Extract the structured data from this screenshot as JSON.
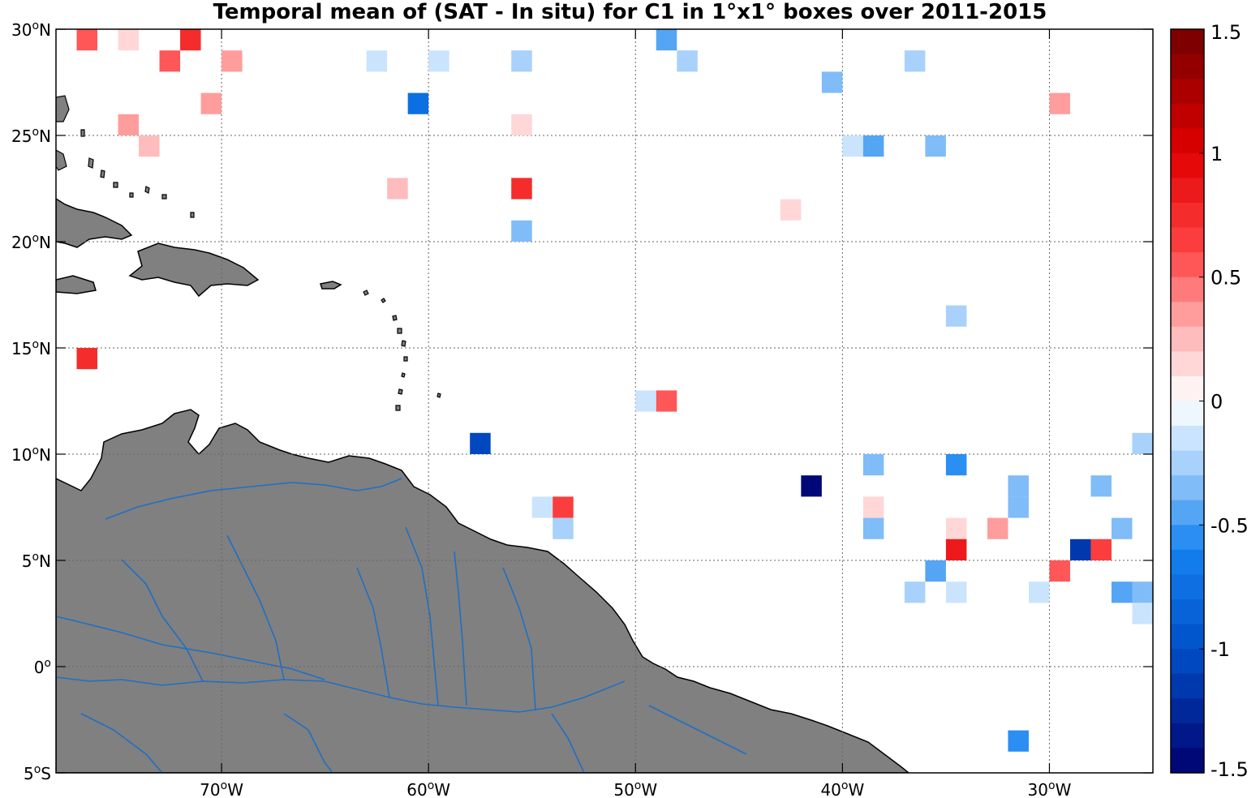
{
  "title": "Temporal mean of (SAT - In situ) for C1 in 1°x1° boxes over 2011-2015",
  "colors": {
    "land": "#808080",
    "coast": "#000000",
    "river": "#1f6fc4",
    "grid": "#666666"
  },
  "map": {
    "lon_range": [
      -78,
      -25
    ],
    "lat_range": [
      -5,
      30
    ],
    "x_ticks": [
      {
        "value": -70,
        "num": "70",
        "sup": "o",
        "dir": "W"
      },
      {
        "value": -60,
        "num": "60",
        "sup": "o",
        "dir": "W"
      },
      {
        "value": -50,
        "num": "50",
        "sup": "o",
        "dir": "W"
      },
      {
        "value": -40,
        "num": "40",
        "sup": "o",
        "dir": "W"
      },
      {
        "value": -30,
        "num": "30",
        "sup": "o",
        "dir": "W"
      }
    ],
    "y_ticks": [
      {
        "value": 30,
        "num": "30",
        "sup": "o",
        "dir": "N"
      },
      {
        "value": 25,
        "num": "25",
        "sup": "o",
        "dir": "N"
      },
      {
        "value": 20,
        "num": "20",
        "sup": "o",
        "dir": "N"
      },
      {
        "value": 15,
        "num": "15",
        "sup": "o",
        "dir": "N"
      },
      {
        "value": 10,
        "num": "10",
        "sup": "o",
        "dir": "N"
      },
      {
        "value": 5,
        "num": "5",
        "sup": "o",
        "dir": "N"
      },
      {
        "value": 0,
        "num": "0",
        "sup": "o",
        "dir": ""
      },
      {
        "value": -5,
        "num": "5",
        "sup": "o",
        "dir": "S"
      }
    ],
    "grid": true
  },
  "colorbar": {
    "range": [
      -1.5,
      1.5
    ],
    "steps": 30,
    "tick_labels": [
      "1.5",
      "1",
      "0.5",
      "0",
      "-0.5",
      "-1",
      "-1.5"
    ],
    "tick_values": [
      1.5,
      1,
      0.5,
      0,
      -0.5,
      -1,
      -1.5
    ]
  },
  "boxes": [
    {
      "lon": -76.5,
      "lat": 29.5,
      "v": 0.55
    },
    {
      "lon": -74.5,
      "lat": 29.5,
      "v": 0.15
    },
    {
      "lon": -71.5,
      "lat": 29.5,
      "v": 0.75
    },
    {
      "lon": -72.5,
      "lat": 28.5,
      "v": 0.5
    },
    {
      "lon": -69.5,
      "lat": 28.5,
      "v": 0.35
    },
    {
      "lon": -62.5,
      "lat": 28.5,
      "v": -0.15
    },
    {
      "lon": -59.5,
      "lat": 28.5,
      "v": -0.1
    },
    {
      "lon": -55.5,
      "lat": 28.5,
      "v": -0.25
    },
    {
      "lon": -48.5,
      "lat": 29.5,
      "v": -0.45
    },
    {
      "lon": -47.5,
      "lat": 28.5,
      "v": -0.25
    },
    {
      "lon": -36.5,
      "lat": 28.5,
      "v": -0.25
    },
    {
      "lon": -40.5,
      "lat": 27.5,
      "v": -0.3
    },
    {
      "lon": -60.5,
      "lat": 26.5,
      "v": -0.75
    },
    {
      "lon": -70.5,
      "lat": 26.5,
      "v": 0.35
    },
    {
      "lon": -29.5,
      "lat": 26.5,
      "v": 0.35
    },
    {
      "lon": -74.5,
      "lat": 25.5,
      "v": 0.35
    },
    {
      "lon": -55.5,
      "lat": 25.5,
      "v": 0.15
    },
    {
      "lon": -73.5,
      "lat": 24.5,
      "v": 0.2
    },
    {
      "lon": -39.5,
      "lat": 24.5,
      "v": -0.2
    },
    {
      "lon": -38.5,
      "lat": 24.5,
      "v": -0.45
    },
    {
      "lon": -35.5,
      "lat": 24.5,
      "v": -0.35
    },
    {
      "lon": -61.5,
      "lat": 22.5,
      "v": 0.2
    },
    {
      "lon": -55.5,
      "lat": 22.5,
      "v": 0.8
    },
    {
      "lon": -42.5,
      "lat": 21.5,
      "v": 0.15
    },
    {
      "lon": -55.5,
      "lat": 20.5,
      "v": -0.4
    },
    {
      "lon": -34.5,
      "lat": 16.5,
      "v": -0.25
    },
    {
      "lon": -76.5,
      "lat": 14.5,
      "v": 0.75
    },
    {
      "lon": -49.5,
      "lat": 12.5,
      "v": -0.2
    },
    {
      "lon": -48.5,
      "lat": 12.5,
      "v": 0.55
    },
    {
      "lon": -57.5,
      "lat": 10.5,
      "v": -1.05
    },
    {
      "lon": -25.5,
      "lat": 10.5,
      "v": -0.25
    },
    {
      "lon": -38.5,
      "lat": 9.5,
      "v": -0.35
    },
    {
      "lon": -34.5,
      "lat": 9.5,
      "v": -0.55
    },
    {
      "lon": -41.5,
      "lat": 8.5,
      "v": -1.5
    },
    {
      "lon": -31.5,
      "lat": 8.5,
      "v": -0.4
    },
    {
      "lon": -27.5,
      "lat": 8.5,
      "v": -0.3
    },
    {
      "lon": -54.5,
      "lat": 7.5,
      "v": -0.15
    },
    {
      "lon": -53.5,
      "lat": 7.5,
      "v": 0.6
    },
    {
      "lon": -38.5,
      "lat": 7.5,
      "v": 0.15
    },
    {
      "lon": -31.5,
      "lat": 7.5,
      "v": -0.3
    },
    {
      "lon": -53.5,
      "lat": 6.5,
      "v": -0.25
    },
    {
      "lon": -38.5,
      "lat": 6.5,
      "v": -0.35
    },
    {
      "lon": -34.5,
      "lat": 6.5,
      "v": 0.15
    },
    {
      "lon": -32.5,
      "lat": 6.5,
      "v": 0.4
    },
    {
      "lon": -26.5,
      "lat": 6.5,
      "v": -0.4
    },
    {
      "lon": -34.5,
      "lat": 5.5,
      "v": 0.9
    },
    {
      "lon": -28.5,
      "lat": 5.5,
      "v": -1.2
    },
    {
      "lon": -27.5,
      "lat": 5.5,
      "v": 0.6
    },
    {
      "lon": -35.5,
      "lat": 4.5,
      "v": -0.45
    },
    {
      "lon": -29.5,
      "lat": 4.5,
      "v": 0.5
    },
    {
      "lon": -36.5,
      "lat": 3.5,
      "v": -0.25
    },
    {
      "lon": -34.5,
      "lat": 3.5,
      "v": -0.15
    },
    {
      "lon": -30.5,
      "lat": 3.5,
      "v": -0.15
    },
    {
      "lon": -26.5,
      "lat": 3.5,
      "v": -0.45
    },
    {
      "lon": -25.5,
      "lat": 3.5,
      "v": -0.35
    },
    {
      "lon": -25.5,
      "lat": 2.5,
      "v": -0.15
    },
    {
      "lon": -31.5,
      "lat": -3.5,
      "v": -0.55
    }
  ]
}
